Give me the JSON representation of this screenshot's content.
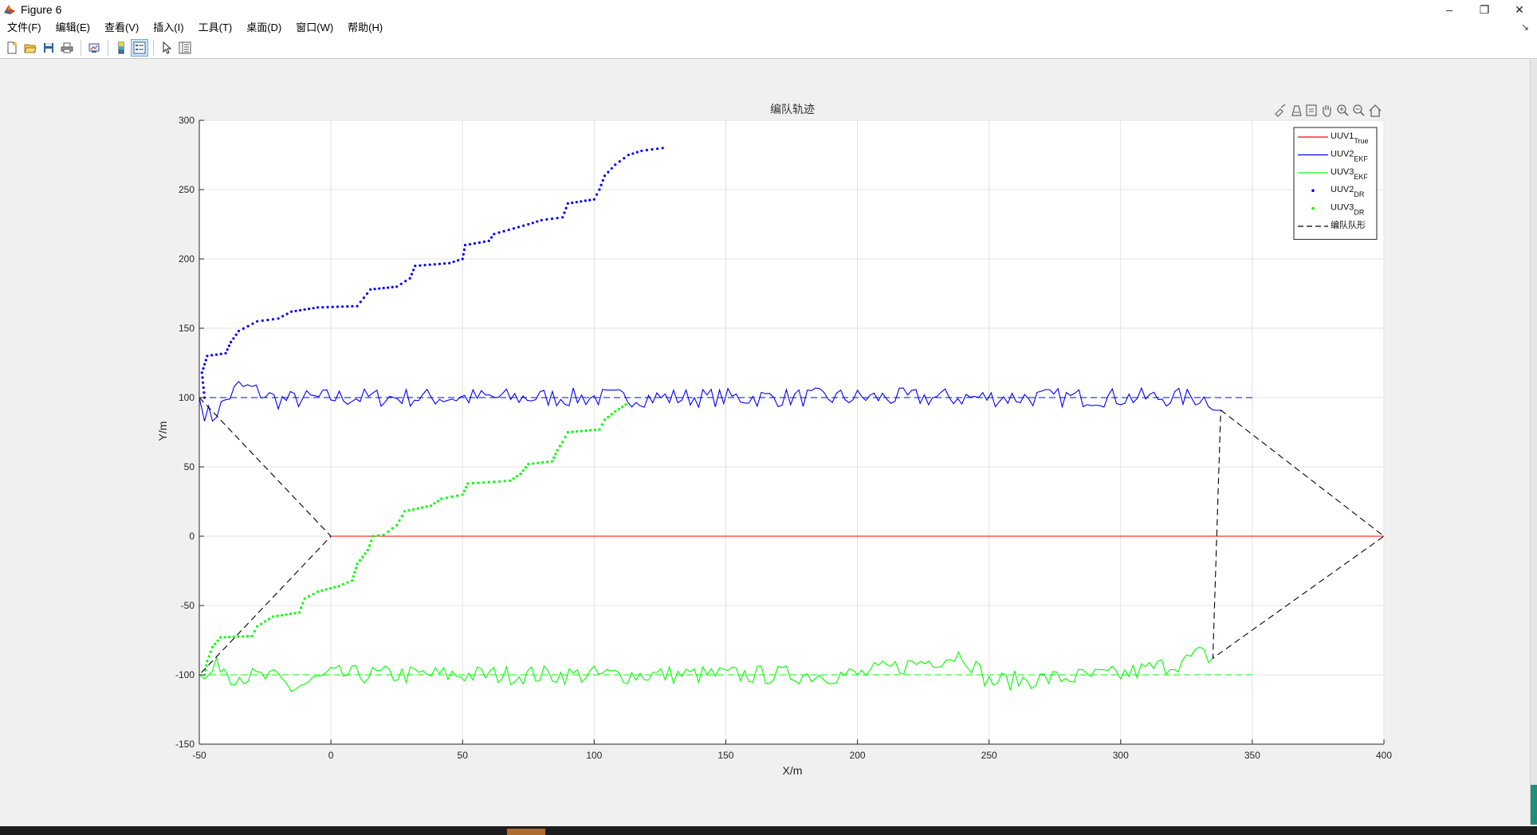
{
  "window": {
    "title": "Figure 6",
    "controls": [
      "–",
      "❐",
      "✕"
    ]
  },
  "menubar": {
    "items": [
      "文件(F)",
      "编辑(E)",
      "查看(V)",
      "插入(I)",
      "工具(T)",
      "桌面(D)",
      "窗口(W)",
      "帮助(H)"
    ]
  },
  "toolbar": {
    "buttons": [
      "new-figure-icon",
      "open-file-icon",
      "save-icon",
      "print-icon",
      "link-plot-icon",
      "insert-colorbar-icon",
      "insert-legend-icon",
      "edit-plot-icon",
      "property-inspector-icon"
    ]
  },
  "axes_toolbar": {
    "buttons": [
      "brush-icon",
      "data-tips-icon",
      "rotate-icon",
      "pan-icon",
      "zoom-in-icon",
      "zoom-out-icon",
      "home-icon"
    ]
  },
  "chart_data": {
    "type": "line",
    "title": "编队轨迹",
    "xlabel": "X/m",
    "ylabel": "Y/m",
    "xlim": [
      -50,
      400
    ],
    "ylim": [
      -150,
      300
    ],
    "xticks": [
      -50,
      0,
      50,
      100,
      150,
      200,
      250,
      300,
      350,
      400
    ],
    "yticks": [
      -150,
      -100,
      -50,
      0,
      50,
      100,
      150,
      200,
      250,
      300
    ],
    "grid": true,
    "legend_position": "top-right",
    "colors": {
      "uuv1_true": "#ff0000",
      "uuv2": "#0000ff",
      "uuv3": "#00ff00",
      "formation": "#000000"
    },
    "legend": [
      {
        "base": "UUV1",
        "sub": "True",
        "style": "line",
        "color": "#ff0000"
      },
      {
        "base": "UUV2",
        "sub": "EKF",
        "style": "line",
        "color": "#0000ff"
      },
      {
        "base": "UUV3",
        "sub": "EKF",
        "style": "line",
        "color": "#00ff00"
      },
      {
        "base": "UUV2",
        "sub": "DR",
        "style": "dot",
        "color": "#0000ff"
      },
      {
        "base": "UUV3",
        "sub": "DR",
        "style": "dot",
        "color": "#00ff00"
      },
      {
        "base": "编队队形",
        "sub": "",
        "style": "dash",
        "color": "#000000"
      }
    ],
    "series": [
      {
        "name": "UUV1True",
        "style": "line",
        "color": "#ff0000",
        "points": [
          [
            0,
            0
          ],
          [
            400,
            0
          ]
        ]
      },
      {
        "name": "UUV2EKF",
        "style": "line",
        "color": "#0000ff",
        "noisy": true,
        "amplitude": 7,
        "points": [
          [
            -50,
            100
          ],
          [
            -48,
            90
          ],
          [
            -45,
            86
          ],
          [
            -40,
            98
          ],
          [
            -35,
            108
          ],
          [
            -30,
            106
          ],
          [
            -20,
            98
          ],
          [
            0,
            100
          ],
          [
            100,
            100
          ],
          [
            200,
            100
          ],
          [
            300,
            100
          ],
          [
            330,
            100
          ],
          [
            335,
            97
          ],
          [
            338,
            91
          ]
        ]
      },
      {
        "name": "UUV3EKF",
        "style": "line",
        "color": "#00ff00",
        "noisy": true,
        "amplitude": 7,
        "points": [
          [
            -50,
            -100
          ],
          [
            -48,
            -105
          ],
          [
            -45,
            -97
          ],
          [
            -42,
            -92
          ],
          [
            -38,
            -100
          ],
          [
            -20,
            -103
          ],
          [
            -15,
            -110
          ],
          [
            0,
            -100
          ],
          [
            100,
            -100
          ],
          [
            200,
            -100
          ],
          [
            240,
            -85
          ],
          [
            250,
            -105
          ],
          [
            300,
            -100
          ],
          [
            325,
            -90
          ],
          [
            330,
            -85
          ],
          [
            335,
            -88
          ]
        ]
      },
      {
        "name": "UUV2DR",
        "style": "dot",
        "color": "#0000ff",
        "points": [
          [
            -48,
            100
          ],
          [
            -49,
            118
          ],
          [
            -47,
            130
          ],
          [
            -40,
            132
          ],
          [
            -38,
            140
          ],
          [
            -35,
            148
          ],
          [
            -28,
            155
          ],
          [
            -20,
            157
          ],
          [
            -15,
            162
          ],
          [
            -5,
            165
          ],
          [
            10,
            166
          ],
          [
            15,
            178
          ],
          [
            25,
            180
          ],
          [
            30,
            186
          ],
          [
            32,
            195
          ],
          [
            45,
            197
          ],
          [
            50,
            200
          ],
          [
            51,
            210
          ],
          [
            60,
            213
          ],
          [
            62,
            218
          ],
          [
            75,
            225
          ],
          [
            80,
            228
          ],
          [
            88,
            230
          ],
          [
            90,
            240
          ],
          [
            100,
            243
          ],
          [
            102,
            250
          ],
          [
            104,
            260
          ],
          [
            108,
            268
          ],
          [
            113,
            275
          ],
          [
            118,
            278
          ],
          [
            126,
            280
          ]
        ]
      },
      {
        "name": "UUV3DR",
        "style": "dot",
        "color": "#00ff00",
        "points": [
          [
            -48,
            -100
          ],
          [
            -47,
            -90
          ],
          [
            -45,
            -80
          ],
          [
            -42,
            -73
          ],
          [
            -30,
            -72
          ],
          [
            -28,
            -65
          ],
          [
            -22,
            -58
          ],
          [
            -12,
            -55
          ],
          [
            -10,
            -45
          ],
          [
            -5,
            -40
          ],
          [
            3,
            -36
          ],
          [
            8,
            -32
          ],
          [
            10,
            -20
          ],
          [
            14,
            -10
          ],
          [
            16,
            0
          ],
          [
            20,
            1
          ],
          [
            25,
            8
          ],
          [
            28,
            18
          ],
          [
            38,
            22
          ],
          [
            42,
            27
          ],
          [
            50,
            30
          ],
          [
            52,
            38
          ],
          [
            60,
            39
          ],
          [
            68,
            40
          ],
          [
            72,
            45
          ],
          [
            75,
            52
          ],
          [
            84,
            54
          ],
          [
            86,
            62
          ],
          [
            88,
            68
          ],
          [
            90,
            75
          ],
          [
            102,
            77
          ],
          [
            104,
            84
          ],
          [
            108,
            90
          ],
          [
            112,
            95
          ]
        ]
      },
      {
        "name": "编队队形",
        "style": "dash",
        "color": "#000000",
        "segments": [
          [
            [
              -50,
              100
            ],
            [
              0,
              0
            ],
            [
              -50,
              -100
            ]
          ],
          [
            [
              338,
              91
            ],
            [
              400,
              0
            ],
            [
              335,
              -88
            ],
            [
              338,
              91
            ]
          ]
        ]
      },
      {
        "name": "UUV2-ref",
        "style": "dash",
        "color": "#0000ff",
        "segments": [
          [
            [
              -50,
              100
            ],
            [
              350,
              100
            ]
          ]
        ]
      },
      {
        "name": "UUV3-ref",
        "style": "dash",
        "color": "#00ff00",
        "segments": [
          [
            [
              -50,
              -100
            ],
            [
              350,
              -100
            ]
          ]
        ]
      }
    ]
  }
}
